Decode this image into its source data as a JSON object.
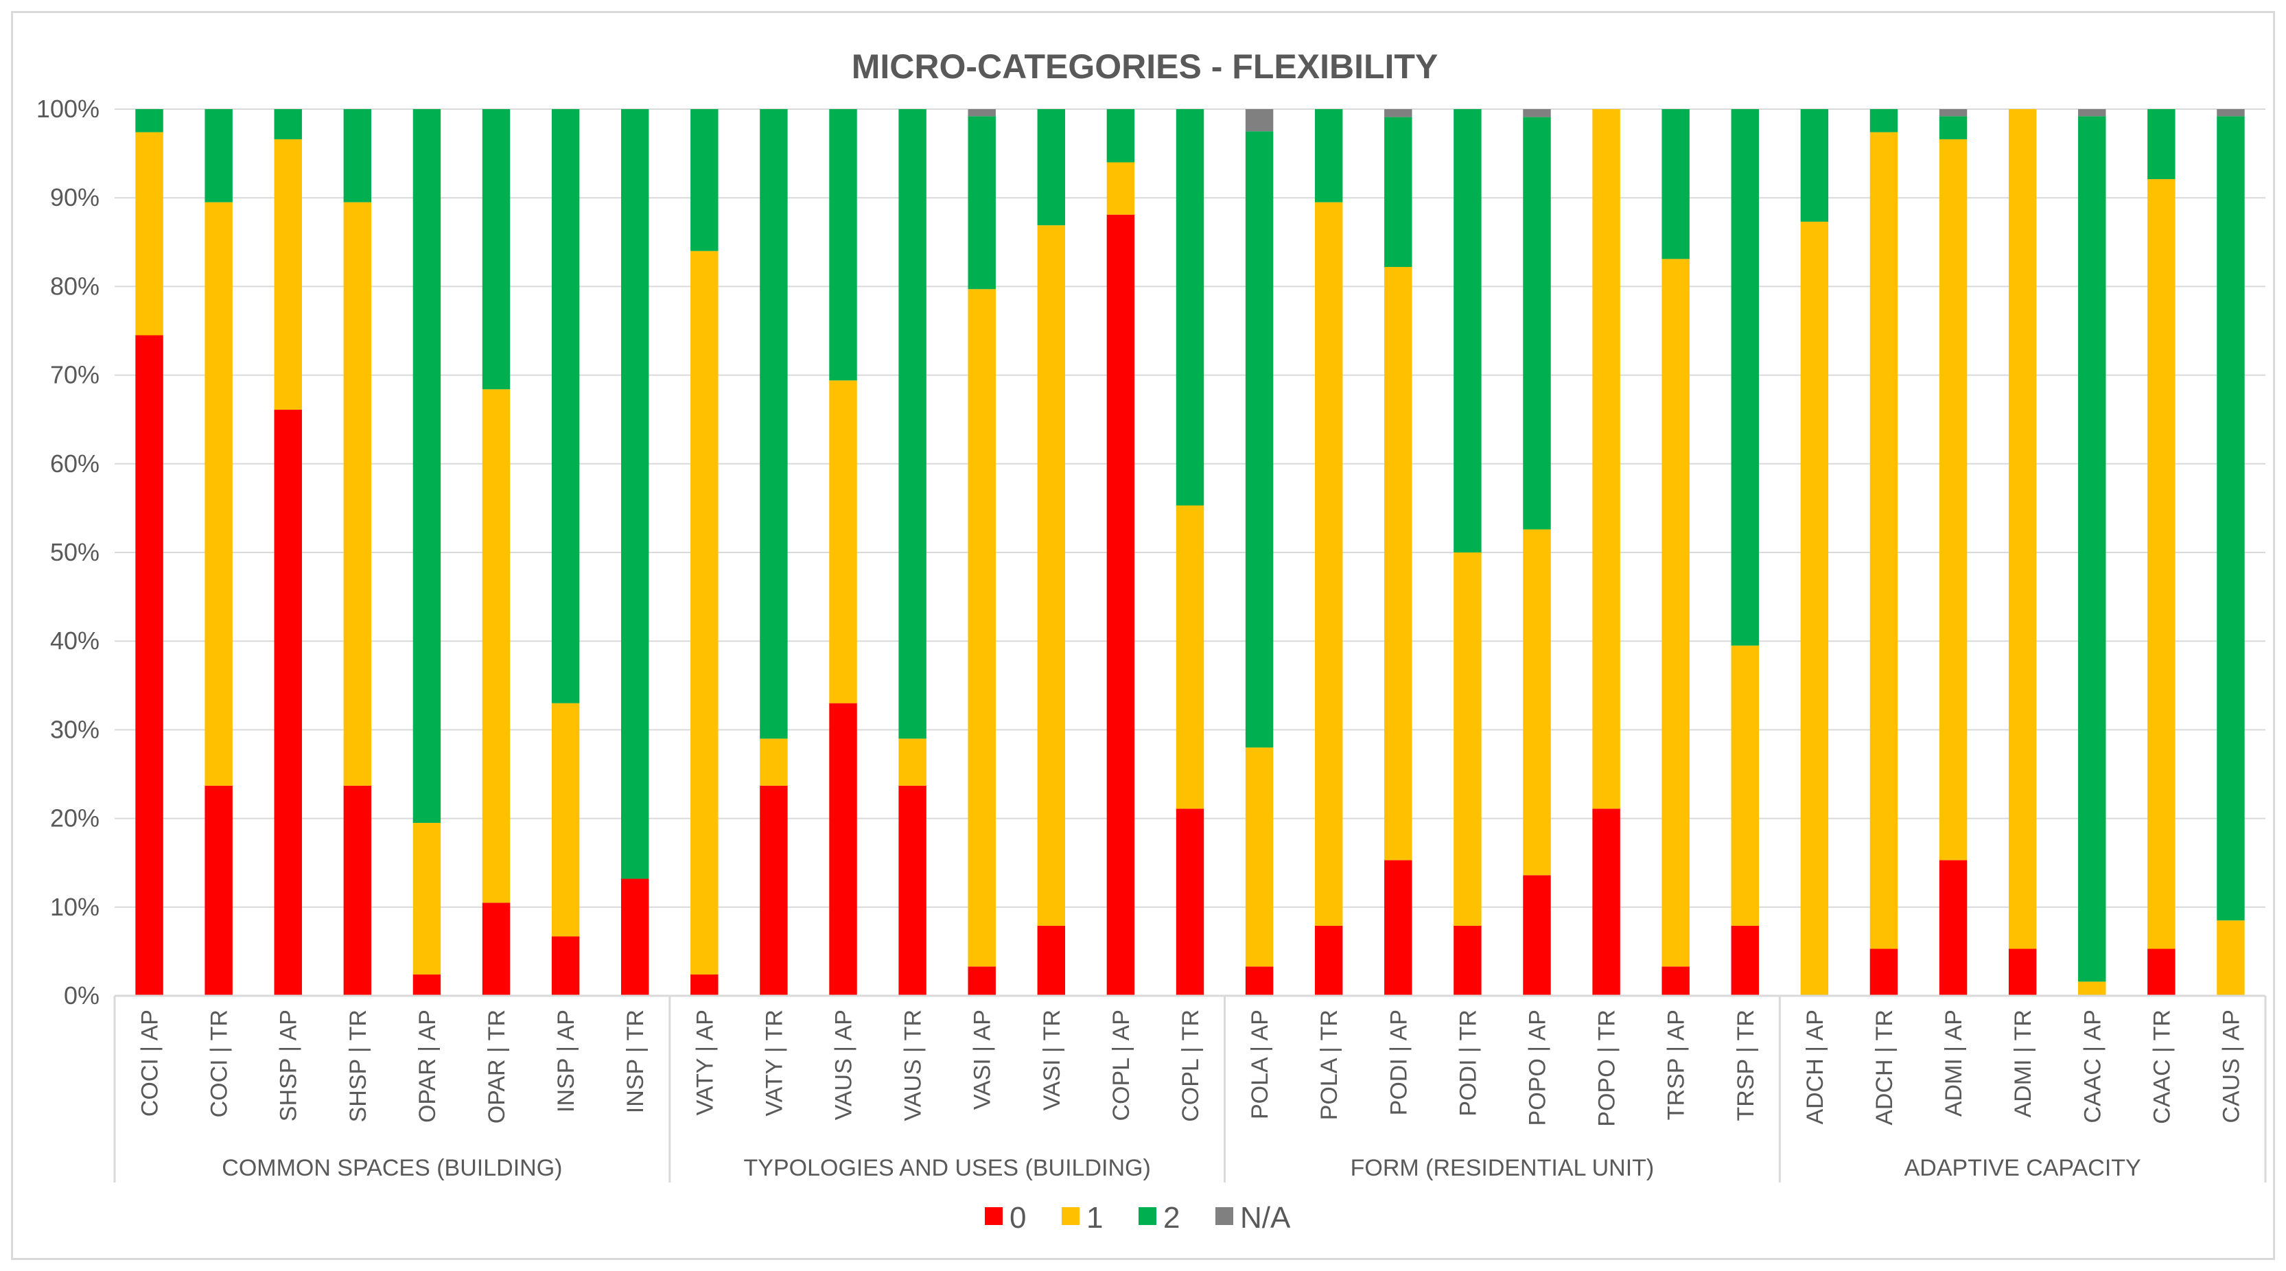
{
  "chart_data": {
    "type": "bar",
    "stacked": true,
    "title": "MICRO-CATEGORIES  - FLEXIBILITY",
    "ylim": [
      0,
      100
    ],
    "yticks": [
      0,
      10,
      20,
      30,
      40,
      50,
      60,
      70,
      80,
      90,
      100
    ],
    "ytick_labels": [
      "0%",
      "10%",
      "20%",
      "30%",
      "40%",
      "50%",
      "60%",
      "70%",
      "80%",
      "90%",
      "100%"
    ],
    "categories": [
      "COCI | AP",
      "COCI | TR",
      "SHSP | AP",
      "SHSP | TR",
      "OPAR | AP",
      "OPAR | TR",
      "INSP | AP",
      "INSP | TR",
      "VATY | AP",
      "VATY | TR",
      "VAUS | AP",
      "VAUS | TR",
      "VASI | AP",
      "VASI | TR",
      "COPL | AP",
      "COPL | TR",
      "POLA | AP",
      "POLA | TR",
      "PODI | AP",
      "PODI | TR",
      "POPO | AP",
      "POPO | TR",
      "TRSP | AP",
      "TRSP | TR",
      "ADCH | AP",
      "ADCH | TR",
      "ADMI | AP",
      "ADMI | TR",
      "CAAC | AP",
      "CAAC | TR",
      "CAUS | AP"
    ],
    "groups": [
      {
        "label": "COMMON SPACES (BUILDING)",
        "count": 8
      },
      {
        "label": "TYPOLOGIES AND USES (BUILDING)",
        "count": 8
      },
      {
        "label": "FORM (RESIDENTIAL UNIT)",
        "count": 8
      },
      {
        "label": "ADAPTIVE CAPACITY",
        "count": 7
      }
    ],
    "series": [
      {
        "name": "0",
        "color": "#ff0000",
        "values": [
          74.5,
          23.7,
          66.1,
          23.7,
          2.4,
          10.5,
          6.7,
          13.2,
          2.4,
          23.7,
          33.0,
          23.7,
          3.3,
          7.9,
          88.1,
          21.1,
          3.3,
          7.9,
          15.3,
          7.9,
          13.6,
          21.1,
          3.3,
          7.9,
          0,
          5.3,
          15.3,
          5.3,
          0,
          5.3,
          0
        ]
      },
      {
        "name": "1",
        "color": "#ffc000",
        "values": [
          22.9,
          65.8,
          30.5,
          65.8,
          17.1,
          57.9,
          26.3,
          0,
          81.6,
          5.3,
          36.4,
          5.3,
          76.4,
          79.0,
          5.9,
          34.2,
          24.7,
          81.6,
          66.9,
          42.1,
          39.0,
          78.9,
          79.8,
          31.6,
          87.3,
          92.1,
          81.3,
          94.7,
          1.6,
          86.8,
          8.5
        ]
      },
      {
        "name": "2",
        "color": "#00b050",
        "values": [
          2.6,
          10.5,
          3.4,
          10.5,
          80.5,
          31.6,
          67.0,
          86.8,
          16.0,
          71.0,
          30.6,
          71.0,
          19.5,
          13.1,
          6.0,
          44.7,
          69.5,
          10.5,
          16.9,
          50.0,
          46.5,
          0,
          16.9,
          60.5,
          12.7,
          2.6,
          2.6,
          0,
          97.6,
          7.9,
          90.7
        ]
      },
      {
        "name": "N/A",
        "color": "#808080",
        "values": [
          0,
          0,
          0,
          0,
          0,
          0,
          0,
          0,
          0,
          0,
          0,
          0,
          0.8,
          0,
          0,
          0,
          2.5,
          0,
          0.9,
          0,
          0.9,
          0,
          0,
          0,
          0,
          0,
          0.8,
          0,
          0.8,
          0,
          0.8
        ]
      }
    ],
    "legend": [
      "0",
      "1",
      "2",
      "N/A"
    ],
    "legend_position": "bottom",
    "grid": true
  }
}
